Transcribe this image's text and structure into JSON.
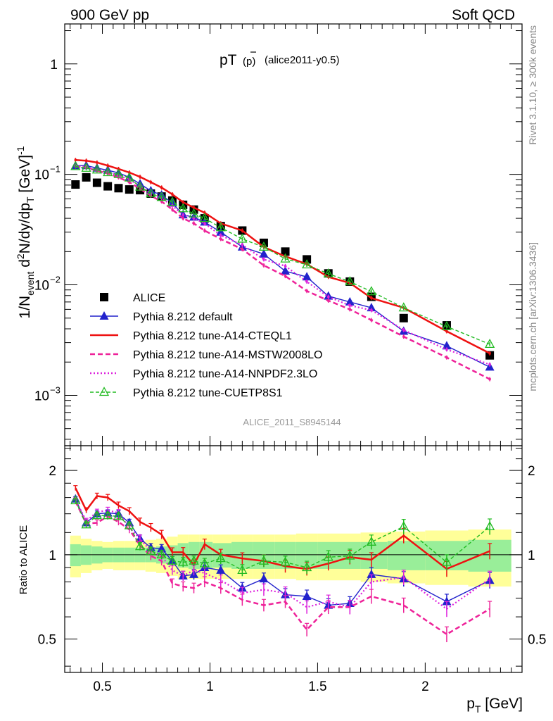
{
  "header": {
    "left": "900 GeV pp",
    "right": "Soft QCD",
    "title_main": "pT",
    "title_sub": "(p)",
    "title_ref": "(alice2011-y0.5)",
    "watermark": "ALICE_2011_S8945144",
    "side_rivet": "Rivet 3.1.10, ≥ 300k events",
    "side_mcplots": "mcplots.cern.ch [arXiv:1306.3436]"
  },
  "axes": {
    "y_top_label": "1/N_event d²N/dy/dp_T [GeV]⁻¹",
    "y_bottom_label": "Ratio to ALICE",
    "x_label": "p_T [GeV]",
    "x_ticks": [
      "0.5",
      "1",
      "1.5",
      "2"
    ],
    "y_top_ticks": [
      "1",
      "10⁻¹",
      "10⁻²",
      "10⁻³"
    ],
    "y_bottom_ticks": [
      "2",
      "1",
      "0.5"
    ]
  },
  "chart_data": {
    "type": "line",
    "x_range": [
      0.325,
      2.45
    ],
    "y_top_range": [
      0.00035,
      2.3
    ],
    "y_top_scale": "log",
    "y_ratio_range": [
      0.38,
      2.45
    ],
    "y_ratio_scale": "log",
    "legend_position": "bottom-left",
    "x": [
      0.375,
      0.425,
      0.475,
      0.525,
      0.575,
      0.625,
      0.675,
      0.725,
      0.775,
      0.825,
      0.875,
      0.925,
      0.975,
      1.05,
      1.15,
      1.25,
      1.35,
      1.45,
      1.55,
      1.65,
      1.75,
      1.9,
      2.1,
      2.3
    ],
    "series": [
      {
        "name": "ALICE",
        "color": "#000000",
        "style": "data",
        "values": [
          0.081,
          0.094,
          0.084,
          0.078,
          0.075,
          0.073,
          0.072,
          0.067,
          0.063,
          0.058,
          0.053,
          0.048,
          0.04,
          0.034,
          0.031,
          0.024,
          0.02,
          0.017,
          0.0127,
          0.0107,
          0.0078,
          0.005,
          0.0043,
          0.0023
        ],
        "ratio": [
          1,
          1,
          1,
          1,
          1,
          1,
          1,
          1,
          1,
          1,
          1,
          1,
          1,
          1,
          1,
          1,
          1,
          1,
          1,
          1,
          1,
          1,
          1,
          1
        ]
      },
      {
        "name": "Pythia 8.212 default",
        "color": "#2222cc",
        "style": "solid-tri",
        "values": [
          0.12,
          0.12,
          0.114,
          0.109,
          0.103,
          0.094,
          0.082,
          0.071,
          0.065,
          0.055,
          0.043,
          0.041,
          0.037,
          0.03,
          0.022,
          0.019,
          0.0133,
          0.0118,
          0.0079,
          0.007,
          0.0062,
          0.0038,
          0.0028,
          0.0018
        ],
        "ratio": [
          1.58,
          1.3,
          1.4,
          1.41,
          1.4,
          1.3,
          1.14,
          1.06,
          1.05,
          0.95,
          0.84,
          0.85,
          0.9,
          0.88,
          0.76,
          0.82,
          0.72,
          0.71,
          0.66,
          0.67,
          0.85,
          0.82,
          0.68,
          0.81
        ]
      },
      {
        "name": "Pythia 8.212 tune-A14-CTEQL1",
        "color": "#ee1111",
        "style": "solid",
        "values": [
          0.135,
          0.133,
          0.128,
          0.12,
          0.112,
          0.104,
          0.095,
          0.085,
          0.076,
          0.066,
          0.056,
          0.05,
          0.045,
          0.036,
          0.031,
          0.022,
          0.0181,
          0.0154,
          0.0118,
          0.0104,
          0.0076,
          0.0062,
          0.0038,
          0.0024
        ],
        "ratio": [
          1.73,
          1.44,
          1.62,
          1.6,
          1.5,
          1.43,
          1.31,
          1.25,
          1.18,
          1.02,
          1.02,
          0.92,
          1.09,
          1.0,
          0.97,
          0.95,
          0.91,
          0.89,
          0.93,
          0.98,
          0.96,
          1.17,
          0.89,
          1.03
        ]
      },
      {
        "name": "Pythia 8.212 tune-A14-MSTW2008LO",
        "color": "#ee2299",
        "style": "dashed",
        "values": [
          0.118,
          0.115,
          0.108,
          0.102,
          0.094,
          0.085,
          0.074,
          0.064,
          0.057,
          0.048,
          0.04,
          0.036,
          0.031,
          0.026,
          0.021,
          0.015,
          0.012,
          0.0088,
          0.0072,
          0.006,
          0.0048,
          0.0034,
          0.0022,
          0.0014
        ],
        "ratio": [
          1.55,
          1.29,
          1.3,
          1.37,
          1.31,
          1.23,
          1.08,
          0.99,
          0.95,
          0.79,
          0.77,
          0.76,
          0.8,
          0.76,
          0.69,
          0.66,
          0.68,
          0.54,
          0.65,
          0.65,
          0.71,
          0.66,
          0.52,
          0.64
        ]
      },
      {
        "name": "Pythia 8.212 tune-A14-NNPDF2.3LO",
        "color": "#dd22dd",
        "style": "dotted",
        "values": [
          0.119,
          0.117,
          0.11,
          0.105,
          0.098,
          0.09,
          0.078,
          0.067,
          0.061,
          0.052,
          0.043,
          0.04,
          0.036,
          0.028,
          0.023,
          0.017,
          0.0148,
          0.0107,
          0.0078,
          0.0065,
          0.0059,
          0.0039,
          0.0026,
          0.0019
        ],
        "ratio": [
          1.57,
          1.32,
          1.42,
          1.44,
          1.41,
          1.25,
          1.14,
          1.03,
          0.99,
          0.88,
          0.84,
          0.88,
          0.86,
          0.81,
          0.73,
          0.75,
          0.73,
          0.65,
          0.68,
          0.65,
          0.8,
          0.83,
          0.64,
          0.82
        ]
      },
      {
        "name": "Pythia 8.212 tune-CUETP8S1",
        "color": "#22bb22",
        "style": "dashed-opentri",
        "values": [
          0.118,
          0.114,
          0.11,
          0.104,
          0.1,
          0.093,
          0.077,
          0.067,
          0.062,
          0.056,
          0.049,
          0.044,
          0.04,
          0.033,
          0.026,
          0.022,
          0.0172,
          0.0152,
          0.0126,
          0.0107,
          0.0087,
          0.0062,
          0.0042,
          0.0029
        ],
        "ratio": [
          1.56,
          1.28,
          1.38,
          1.38,
          1.37,
          1.27,
          1.07,
          1.03,
          1.0,
          0.95,
          0.94,
          0.95,
          0.93,
          0.97,
          0.88,
          0.95,
          0.94,
          0.9,
          0.98,
          0.99,
          1.11,
          1.26,
          0.94,
          1.26
        ]
      }
    ],
    "ratio_bands": {
      "inner_color": "#99ee99",
      "outer_color": "#ffff99",
      "inner_halfwidth": [
        0.09,
        0.08,
        0.07,
        0.06,
        0.06,
        0.06,
        0.06,
        0.06,
        0.07,
        0.08,
        0.1,
        0.11,
        0.11,
        0.1,
        0.11,
        0.11,
        0.11,
        0.11,
        0.11,
        0.11,
        0.11,
        0.12,
        0.12,
        0.13
      ],
      "outer_halfwidth": [
        0.17,
        0.14,
        0.12,
        0.11,
        0.12,
        0.12,
        0.12,
        0.13,
        0.14,
        0.16,
        0.18,
        0.18,
        0.18,
        0.18,
        0.18,
        0.18,
        0.18,
        0.19,
        0.19,
        0.19,
        0.2,
        0.21,
        0.22,
        0.23
      ]
    }
  }
}
